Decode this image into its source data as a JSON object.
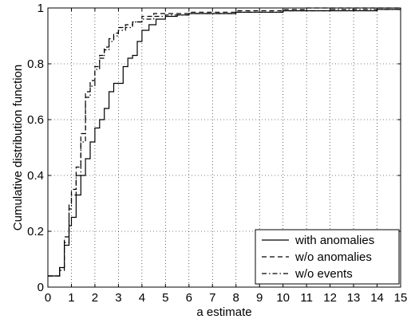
{
  "chart_data": {
    "type": "line",
    "title": "",
    "xlabel": "a estimate",
    "ylabel": "Cumulative distribution function",
    "xlim": [
      0,
      15
    ],
    "ylim": [
      0,
      1
    ],
    "xticks": [
      "0",
      "1",
      "2",
      "3",
      "4",
      "5",
      "6",
      "7",
      "8",
      "9",
      "10",
      "11",
      "12",
      "13",
      "14",
      "15"
    ],
    "yticks": [
      "0",
      "0.2",
      "0.4",
      "0.6",
      "0.8",
      "1"
    ],
    "grid": true,
    "legend_position": "bottom-right",
    "series": [
      {
        "name": "with anomalies",
        "style": "solid",
        "color": "#000000",
        "x": [
          0,
          0.5,
          0.7,
          0.9,
          1.0,
          1.2,
          1.4,
          1.6,
          1.8,
          2.0,
          2.2,
          2.4,
          2.6,
          2.8,
          3.0,
          3.2,
          3.4,
          3.6,
          3.8,
          4.0,
          4.3,
          4.6,
          5.0,
          5.5,
          6.0,
          7.0,
          8.0,
          10.0,
          12.0,
          14.0,
          15.0
        ],
        "y": [
          0.04,
          0.07,
          0.15,
          0.22,
          0.25,
          0.33,
          0.4,
          0.46,
          0.52,
          0.57,
          0.6,
          0.64,
          0.7,
          0.73,
          0.73,
          0.79,
          0.82,
          0.83,
          0.88,
          0.92,
          0.94,
          0.96,
          0.97,
          0.975,
          0.98,
          0.98,
          0.985,
          0.99,
          0.99,
          0.995,
          1.0
        ]
      },
      {
        "name": "w/o anomalies",
        "style": "dashed",
        "color": "#000000",
        "x": [
          0,
          0.5,
          0.7,
          0.9,
          1.0,
          1.2,
          1.4,
          1.6,
          1.8,
          2.0,
          2.2,
          2.4,
          2.6,
          2.8,
          3.0,
          3.3,
          3.6,
          4.0,
          4.5,
          5.0,
          6.0,
          8.0,
          10.0,
          11.0,
          15.0
        ],
        "y": [
          0.04,
          0.07,
          0.18,
          0.3,
          0.35,
          0.43,
          0.55,
          0.7,
          0.74,
          0.79,
          0.83,
          0.86,
          0.89,
          0.91,
          0.93,
          0.94,
          0.95,
          0.97,
          0.98,
          0.98,
          0.985,
          0.99,
          0.995,
          1.0,
          1.0
        ]
      },
      {
        "name": "w/o events",
        "style": "dashdot",
        "color": "#000000",
        "x": [
          0,
          0.5,
          0.7,
          0.9,
          1.0,
          1.2,
          1.4,
          1.6,
          1.8,
          2.0,
          2.2,
          2.4,
          2.6,
          2.8,
          3.0,
          3.3,
          3.6,
          4.0,
          4.5,
          5.0,
          6.0,
          8.0,
          10.0,
          12.0,
          15.0
        ],
        "y": [
          0.04,
          0.06,
          0.16,
          0.28,
          0.33,
          0.4,
          0.52,
          0.68,
          0.72,
          0.78,
          0.82,
          0.85,
          0.88,
          0.9,
          0.92,
          0.93,
          0.95,
          0.96,
          0.97,
          0.975,
          0.98,
          0.985,
          0.99,
          0.995,
          1.0
        ]
      }
    ]
  }
}
